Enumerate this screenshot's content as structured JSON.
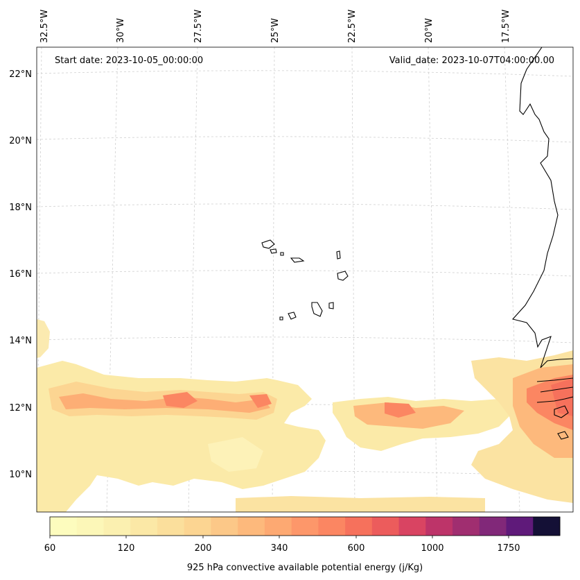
{
  "header": {
    "start_date": "Start date: 2023-10-05_00:00:00",
    "valid_date": "Valid_date: 2023-10-07T04:00:00.00"
  },
  "map": {
    "projection": "conic",
    "lon_labels": [
      "32.5°W",
      "30°W",
      "27.5°W",
      "25°W",
      "22.5°W",
      "20°W",
      "17.5°W"
    ],
    "lat_labels": [
      "22°N",
      "20°N",
      "18°N",
      "16°N",
      "14°N",
      "12°N",
      "10°N"
    ],
    "gridlines": "dashed light grey",
    "coastlines": [
      "West Africa coast (Mauritania, Senegal, Gambia, Guinea-Bissau)",
      "Cape Verde islands"
    ]
  },
  "field": {
    "variable": "925 hPa convective available potential energy",
    "units": "j/Kg",
    "pattern": "band of high values near 11-13°N, maximum over West African coast"
  },
  "colorbar": {
    "title": "925 hPa convective available potential energy (j/Kg)",
    "tick_labels": [
      "60",
      "120",
      "200",
      "340",
      "600",
      "1000",
      "1750"
    ],
    "colors": [
      "#fdfcbe",
      "#fcf7b8",
      "#fbf0b0",
      "#fbe8a6",
      "#fbdf9c",
      "#fcd592",
      "#fcc888",
      "#fdb97c",
      "#fda972",
      "#fd976a",
      "#fb8662",
      "#f6715c",
      "#ec5c5c",
      "#d94462",
      "#bd3469",
      "#a02e70",
      "#812879",
      "#5f1a7a",
      "#141036"
    ]
  }
}
